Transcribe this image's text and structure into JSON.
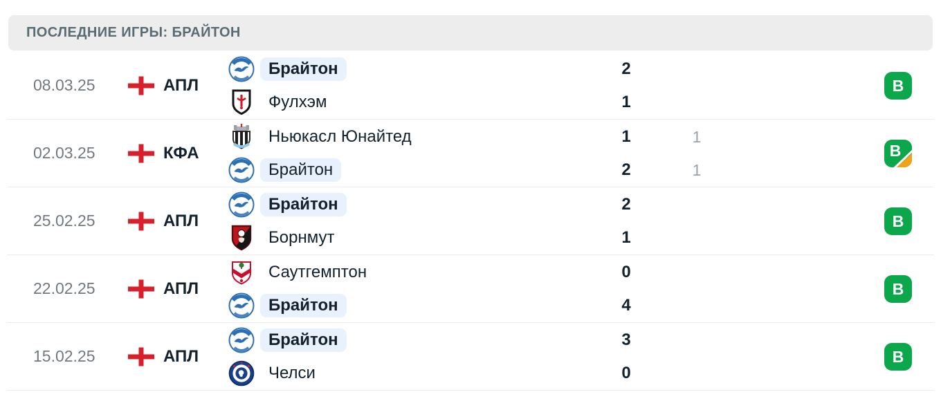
{
  "header": {
    "title": "ПОСЛЕДНИЕ ИГРЫ: БРАЙТОН"
  },
  "colors": {
    "win_green": "#0ca64b",
    "overtime_orange": "#f0a21c",
    "highlight_pill": "#e9f1fd",
    "text_dark": "#13202e",
    "text_gray": "#71797f",
    "text_secondary": "#9aa1a8",
    "flag_red": "#d6202b"
  },
  "matches": [
    {
      "date": "08.03.25",
      "league": {
        "label": "АПЛ",
        "flag_icon": "england-flag"
      },
      "teams": [
        {
          "name": "Брайтон",
          "logo_icon": "brighton-logo",
          "highlight": true,
          "bold": true
        },
        {
          "name": "Фулхэм",
          "logo_icon": "fulham-logo",
          "highlight": false,
          "bold": false
        }
      ],
      "scores": [
        {
          "main": "2",
          "secondary": ""
        },
        {
          "main": "1",
          "secondary": ""
        }
      ],
      "result": {
        "label": "В",
        "outcome": "win",
        "overtime": false
      }
    },
    {
      "date": "02.03.25",
      "league": {
        "label": "КФА",
        "flag_icon": "england-flag"
      },
      "teams": [
        {
          "name": "Ньюкасл Юнайтед",
          "logo_icon": "newcastle-logo",
          "highlight": false,
          "bold": false
        },
        {
          "name": "Брайтон",
          "logo_icon": "brighton-logo",
          "highlight": true,
          "bold": false
        }
      ],
      "scores": [
        {
          "main": "1",
          "secondary": "1"
        },
        {
          "main": "2",
          "secondary": "1"
        }
      ],
      "result": {
        "label": "В",
        "outcome": "win",
        "overtime": true
      }
    },
    {
      "date": "25.02.25",
      "league": {
        "label": "АПЛ",
        "flag_icon": "england-flag"
      },
      "teams": [
        {
          "name": "Брайтон",
          "logo_icon": "brighton-logo",
          "highlight": true,
          "bold": true
        },
        {
          "name": "Борнмут",
          "logo_icon": "bournemouth-logo",
          "highlight": false,
          "bold": false
        }
      ],
      "scores": [
        {
          "main": "2",
          "secondary": ""
        },
        {
          "main": "1",
          "secondary": ""
        }
      ],
      "result": {
        "label": "В",
        "outcome": "win",
        "overtime": false
      }
    },
    {
      "date": "22.02.25",
      "league": {
        "label": "АПЛ",
        "flag_icon": "england-flag"
      },
      "teams": [
        {
          "name": "Саутгемптон",
          "logo_icon": "southampton-logo",
          "highlight": false,
          "bold": false
        },
        {
          "name": "Брайтон",
          "logo_icon": "brighton-logo",
          "highlight": true,
          "bold": true
        }
      ],
      "scores": [
        {
          "main": "0",
          "secondary": ""
        },
        {
          "main": "4",
          "secondary": ""
        }
      ],
      "result": {
        "label": "В",
        "outcome": "win",
        "overtime": false
      }
    },
    {
      "date": "15.02.25",
      "league": {
        "label": "АПЛ",
        "flag_icon": "england-flag"
      },
      "teams": [
        {
          "name": "Брайтон",
          "logo_icon": "brighton-logo",
          "highlight": true,
          "bold": true
        },
        {
          "name": "Челси",
          "logo_icon": "chelsea-logo",
          "highlight": false,
          "bold": false
        }
      ],
      "scores": [
        {
          "main": "3",
          "secondary": ""
        },
        {
          "main": "0",
          "secondary": ""
        }
      ],
      "result": {
        "label": "В",
        "outcome": "win",
        "overtime": false
      }
    }
  ]
}
